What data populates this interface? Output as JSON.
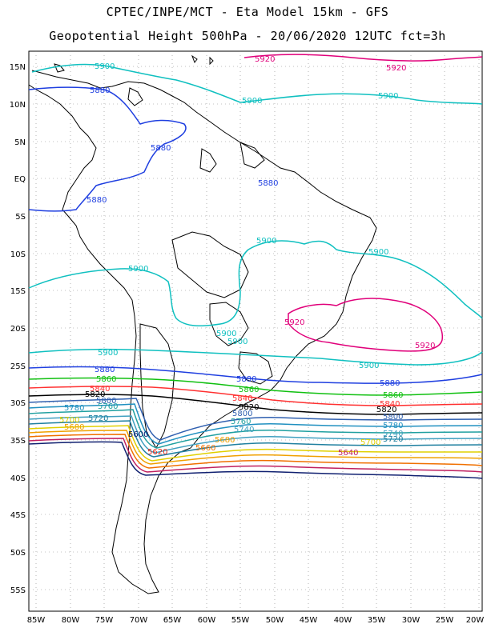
{
  "title_line1": "CPTEC/INPE/MCT  -  Eta Model 15km  -  GFS",
  "title_line2": "Geopotential Height 500hPa  -  20/06/2020 12UTC fct=3h",
  "lat_labels": [
    "15N",
    "10N",
    "5N",
    "EQ",
    "5S",
    "10S",
    "15S",
    "20S",
    "25S",
    "30S",
    "35S",
    "40S",
    "45S",
    "50S",
    "55S"
  ],
  "lon_labels": [
    "85W",
    "80W",
    "75W",
    "70W",
    "65W",
    "60W",
    "55W",
    "50W",
    "45W",
    "40W",
    "35W",
    "30W",
    "25W",
    "20W"
  ],
  "map": {
    "lon_range": [
      -86,
      -20
    ],
    "lat_range": [
      -58,
      17
    ],
    "grid": "dotted",
    "coastline_color": "#000000"
  },
  "contours": [
    {
      "level": "5920",
      "color": "#e0007a"
    },
    {
      "level": "5900",
      "color": "#10c0c0"
    },
    {
      "level": "5880",
      "color": "#1f3fe0"
    },
    {
      "level": "5860",
      "color": "#10c010"
    },
    {
      "level": "5840",
      "color": "#ff3030"
    },
    {
      "level": "5820",
      "color": "#000000"
    },
    {
      "level": "5800",
      "color": "#3060b0"
    },
    {
      "level": "5780",
      "color": "#2090c0"
    },
    {
      "level": "5760",
      "color": "#20a0a0"
    },
    {
      "level": "5740",
      "color": "#40a0c0"
    },
    {
      "level": "5720",
      "color": "#2080a0"
    },
    {
      "level": "5700",
      "color": "#e0d000"
    },
    {
      "level": "5680",
      "color": "#f0a000"
    },
    {
      "level": "5660",
      "color": "#f07000"
    },
    {
      "level": "5640",
      "color": "#c02060"
    },
    {
      "level": "5620",
      "color": "#e03020"
    },
    {
      "level": "5600",
      "color": "#102070"
    }
  ],
  "contour_labels": {
    "c5920_a": "5920",
    "c5920_b": "5920",
    "c5920_c": "5920",
    "c5920_d": "5920",
    "c5900_a": "5900",
    "c5900_b": "5900",
    "c5900_c": "5900",
    "c5900_d": "5900",
    "c5900_e": "5900",
    "c5900_f": "5900",
    "c5900_g": "5900",
    "c5900_h": "5900",
    "c5900_i": "5900",
    "c5900_j": "5900",
    "c5880_a": "5880",
    "c5880_b": "5880",
    "c5880_c": "5880",
    "c5880_d": "5880",
    "c5880_e": "5880",
    "c5880_f": "5880",
    "c5880_g": "5880",
    "c5860_a": "5860",
    "c5860_b": "5860",
    "c5860_c": "5860",
    "c5840_a": "5840",
    "c5840_b": "5840",
    "c5840_c": "5840",
    "c5820_a": "5820",
    "c5820_b": "5820",
    "c5820_c": "5820",
    "c5800_a": "5800",
    "c5800_b": "5800",
    "c5800_c": "5800",
    "c5780_a": "5780",
    "c5780_b": "5780",
    "c5760_a": "5760",
    "c5760_b": "5760",
    "c5740_a": "5740",
    "c5740_b": "5740",
    "c5720_a": "5720",
    "c5720_b": "5720",
    "c5700_a": "5700",
    "c5700_b": "5700",
    "c5680_a": "5680",
    "c5680_b": "5680",
    "c5660_a": "5660",
    "c5640_a": "5640",
    "c5620_a": "5620",
    "c5600_a": "5600"
  }
}
